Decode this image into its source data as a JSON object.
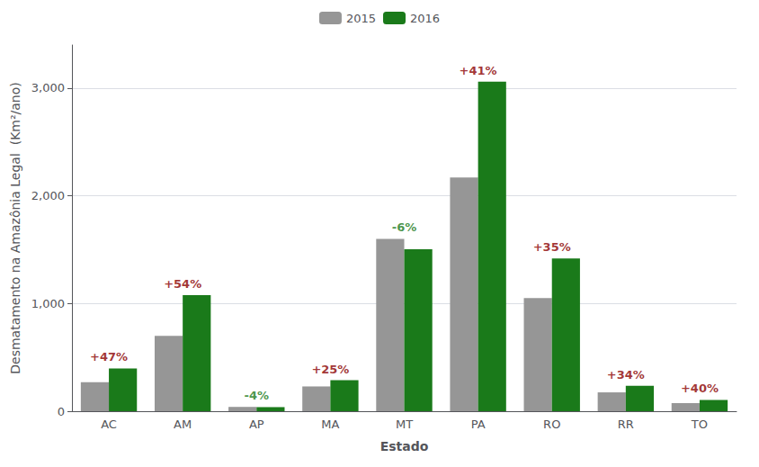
{
  "chart_data": {
    "type": "bar",
    "categories": [
      "AC",
      "AM",
      "AP",
      "MA",
      "MT",
      "PA",
      "RO",
      "RR",
      "TO"
    ],
    "series": [
      {
        "name": "2015",
        "color": "#969696",
        "values": [
          270,
          700,
          40,
          230,
          1600,
          2170,
          1050,
          175,
          75
        ]
      },
      {
        "name": "2016",
        "color": "#1a7a1a",
        "values": [
          397,
          1078,
          38,
          288,
          1504,
          3060,
          1418,
          235,
          105
        ]
      }
    ],
    "annotations": [
      {
        "category": "AC",
        "text": "+47%",
        "color": "#8B0000"
      },
      {
        "category": "AM",
        "text": "+54%",
        "color": "#8B0000"
      },
      {
        "category": "AP",
        "text": "-4%",
        "color": "#1a7a1a"
      },
      {
        "category": "MA",
        "text": "+25%",
        "color": "#8B0000"
      },
      {
        "category": "MT",
        "text": "-6%",
        "color": "#1a7a1a"
      },
      {
        "category": "PA",
        "text": "+41%",
        "color": "#8B0000"
      },
      {
        "category": "RO",
        "text": "+35%",
        "color": "#8B0000"
      },
      {
        "category": "RR",
        "text": "+34%",
        "color": "#8B0000"
      },
      {
        "category": "TO",
        "text": "+40%",
        "color": "#8B0000"
      }
    ],
    "xlabel": "Estado",
    "ylabel": "Desmatamento na Amazônia Legal  (Km²/ano)",
    "ylim": [
      0,
      3400
    ],
    "yticks": [
      0,
      1000,
      2000,
      3000
    ],
    "grid": true,
    "legend": "top"
  }
}
